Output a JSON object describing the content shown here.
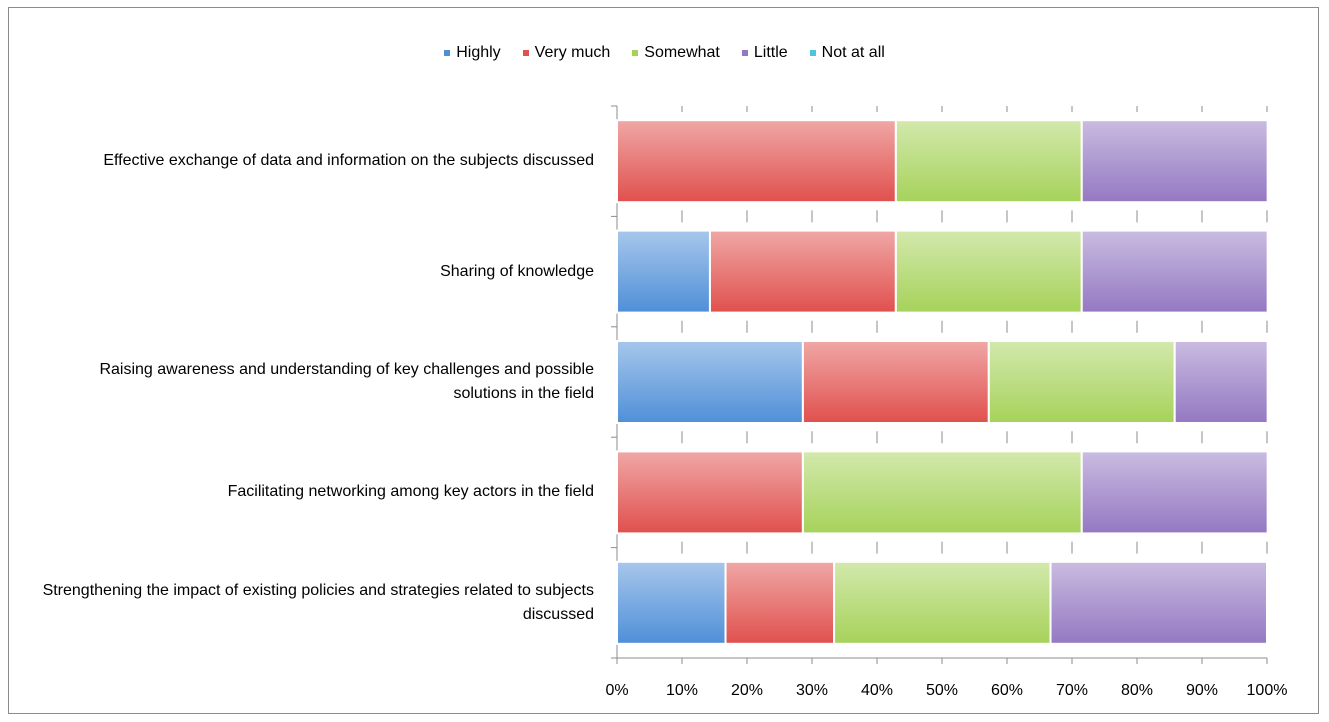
{
  "chart_data": {
    "type": "stacked_barh",
    "categories": [
      "Effective exchange of data and information on the subjects discussed",
      "Sharing of knowledge",
      "Raising awareness and understanding of key challenges and possible solutions in the field",
      "Facilitating networking among key actors in the field",
      "Strengthening the impact of existing policies and strategies related to subjects discussed"
    ],
    "series": [
      {
        "name": "Highly",
        "color": "#4f8fd8",
        "values": [
          0,
          14.3,
          28.6,
          0,
          16.7
        ]
      },
      {
        "name": "Very much",
        "color": "#e0504d",
        "values": [
          42.9,
          28.6,
          28.6,
          28.6,
          16.7
        ]
      },
      {
        "name": "Somewhat",
        "color": "#a6d25a",
        "values": [
          28.6,
          28.6,
          28.6,
          42.9,
          33.3
        ]
      },
      {
        "name": "Little",
        "color": "#9478c2",
        "values": [
          28.6,
          28.6,
          14.3,
          28.6,
          33.3
        ]
      },
      {
        "name": "Not at all",
        "color": "#4bc6dc",
        "values": [
          0,
          0,
          0,
          0,
          0
        ]
      }
    ],
    "xlim": [
      0,
      100
    ],
    "xticks": [
      {
        "value": 0,
        "label": "0%"
      },
      {
        "value": 10,
        "label": "10%"
      },
      {
        "value": 20,
        "label": "20%"
      },
      {
        "value": 30,
        "label": "30%"
      },
      {
        "value": 40,
        "label": "40%"
      },
      {
        "value": 50,
        "label": "50%"
      },
      {
        "value": 60,
        "label": "60%"
      },
      {
        "value": 70,
        "label": "70%"
      },
      {
        "value": 80,
        "label": "80%"
      },
      {
        "value": 90,
        "label": "90%"
      },
      {
        "value": 100,
        "label": "100%"
      }
    ],
    "legend": "top"
  }
}
